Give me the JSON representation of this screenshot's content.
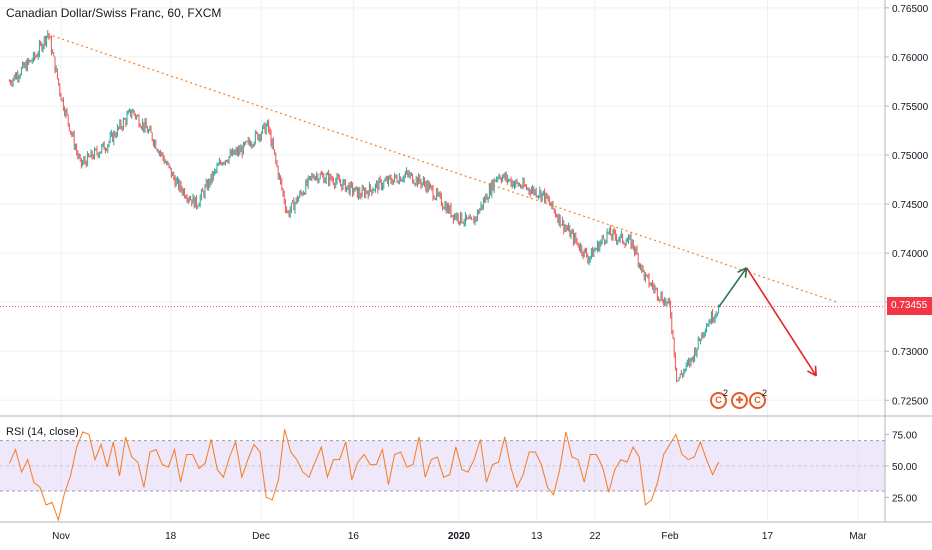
{
  "header": {
    "title": "Canadian Dollar/Swiss Franc, 60, FXCM"
  },
  "rsi": {
    "label": "RSI (14, close)",
    "band_color": "#e1d4f5",
    "line_color": "#f57c22"
  },
  "price_tag": "0.73455",
  "events": {
    "first_count": "2",
    "second_count": "2"
  },
  "colors": {
    "up": "#26a69a",
    "down": "#ef5350",
    "trendline": "#f57c22",
    "hline": "#ef5350",
    "arrow_up": "#2e6f5a",
    "arrow_down": "#e32626"
  },
  "chart_data": [
    {
      "type": "candlestick",
      "title": "Canadian Dollar/Swiss Franc, 60, FXCM",
      "x_ticks": [
        "Nov",
        "18",
        "Dec",
        "16",
        "2020",
        "13",
        "22",
        "Feb",
        "17",
        "Mar"
      ],
      "y_ticks": [
        "0.76500",
        "0.76000",
        "0.75500",
        "0.75000",
        "0.74500",
        "0.74000",
        "0.73500",
        "0.73000",
        "0.72500"
      ],
      "ylim": [
        0.7235,
        0.7658
      ],
      "last_price": 0.73455,
      "close_path": [
        {
          "x": "Oct 24",
          "y": 0.7575
        },
        {
          "x": "Oct 28",
          "y": 0.76
        },
        {
          "x": "Oct 30",
          "y": 0.7625
        },
        {
          "x": "Nov 1",
          "y": 0.756
        },
        {
          "x": "Nov 4",
          "y": 0.749
        },
        {
          "x": "Nov 8",
          "y": 0.751
        },
        {
          "x": "Nov 12",
          "y": 0.7545
        },
        {
          "x": "Nov 15",
          "y": 0.752
        },
        {
          "x": "Nov 19",
          "y": 0.747
        },
        {
          "x": "Nov 22",
          "y": 0.745
        },
        {
          "x": "Nov 26",
          "y": 0.7495
        },
        {
          "x": "Nov 29",
          "y": 0.7505
        },
        {
          "x": "Dec 3",
          "y": 0.753
        },
        {
          "x": "Dec 6",
          "y": 0.744
        },
        {
          "x": "Dec 10",
          "y": 0.748
        },
        {
          "x": "Dec 13",
          "y": 0.7475
        },
        {
          "x": "Dec 17",
          "y": 0.746
        },
        {
          "x": "Dec 20",
          "y": 0.747
        },
        {
          "x": "Dec 24",
          "y": 0.748
        },
        {
          "x": "Dec 27",
          "y": 0.747
        },
        {
          "x": "Dec 31",
          "y": 0.744
        },
        {
          "x": "Jan 3",
          "y": 0.743
        },
        {
          "x": "Jan 7",
          "y": 0.748
        },
        {
          "x": "Jan 10",
          "y": 0.747
        },
        {
          "x": "Jan 14",
          "y": 0.746
        },
        {
          "x": "Jan 17",
          "y": 0.743
        },
        {
          "x": "Jan 21",
          "y": 0.7395
        },
        {
          "x": "Jan 24",
          "y": 0.742
        },
        {
          "x": "Jan 28",
          "y": 0.741
        },
        {
          "x": "Jan 30",
          "y": 0.7375
        },
        {
          "x": "Feb 3",
          "y": 0.7345
        },
        {
          "x": "Feb 4",
          "y": 0.727
        },
        {
          "x": "Feb 6",
          "y": 0.729
        },
        {
          "x": "Feb 8",
          "y": 0.7325
        },
        {
          "x": "Feb 10",
          "y": 0.7345
        }
      ],
      "annotations": [
        {
          "type": "trendline",
          "from": {
            "x": "Oct 30",
            "y": 0.7623
          },
          "to": {
            "x": "Feb 27",
            "y": 0.735
          }
        },
        {
          "type": "horizontal_line",
          "y": 0.73455
        },
        {
          "type": "arrow",
          "from": {
            "x": "Feb 10",
            "y": 0.7345
          },
          "to": {
            "x": "Feb 14",
            "y": 0.7385
          }
        },
        {
          "type": "arrow",
          "from": {
            "x": "Feb 14",
            "y": 0.7385
          },
          "to": {
            "x": "Feb 24",
            "y": 0.7275
          }
        }
      ]
    },
    {
      "type": "line",
      "title": "RSI (14, close)",
      "y_ticks": [
        "75.00",
        "50.00",
        "25.00"
      ],
      "ylim": [
        7,
        88
      ],
      "band": [
        30,
        70
      ],
      "x_ticks": [
        "Nov",
        "18",
        "Dec",
        "16",
        "2020",
        "13",
        "22",
        "Feb",
        "17",
        "Mar"
      ],
      "values": [
        55,
        60,
        48,
        52,
        40,
        30,
        22,
        18,
        10,
        25,
        45,
        62,
        80,
        72,
        58,
        64,
        52,
        66,
        45,
        70,
        60,
        50,
        36,
        58,
        66,
        48,
        52,
        60,
        40,
        56,
        62,
        45,
        55,
        68,
        50,
        38,
        60,
        66,
        44,
        52,
        70,
        58,
        28,
        20,
        42,
        76,
        64,
        52,
        48,
        38,
        56,
        62,
        44,
        52,
        58,
        66,
        42,
        50,
        62,
        48,
        54,
        60,
        38,
        56,
        64,
        46,
        54,
        70,
        44,
        52,
        60,
        38,
        46,
        62,
        50,
        42,
        58,
        68,
        40,
        48,
        56,
        70,
        52,
        30,
        46,
        58,
        64,
        48,
        36,
        24,
        50,
        74,
        60,
        52,
        40,
        56,
        62,
        46,
        32,
        44,
        58,
        50,
        68,
        54,
        22,
        20,
        40,
        56,
        70,
        72,
        62,
        52,
        60,
        66,
        58,
        40,
        56
      ]
    }
  ]
}
